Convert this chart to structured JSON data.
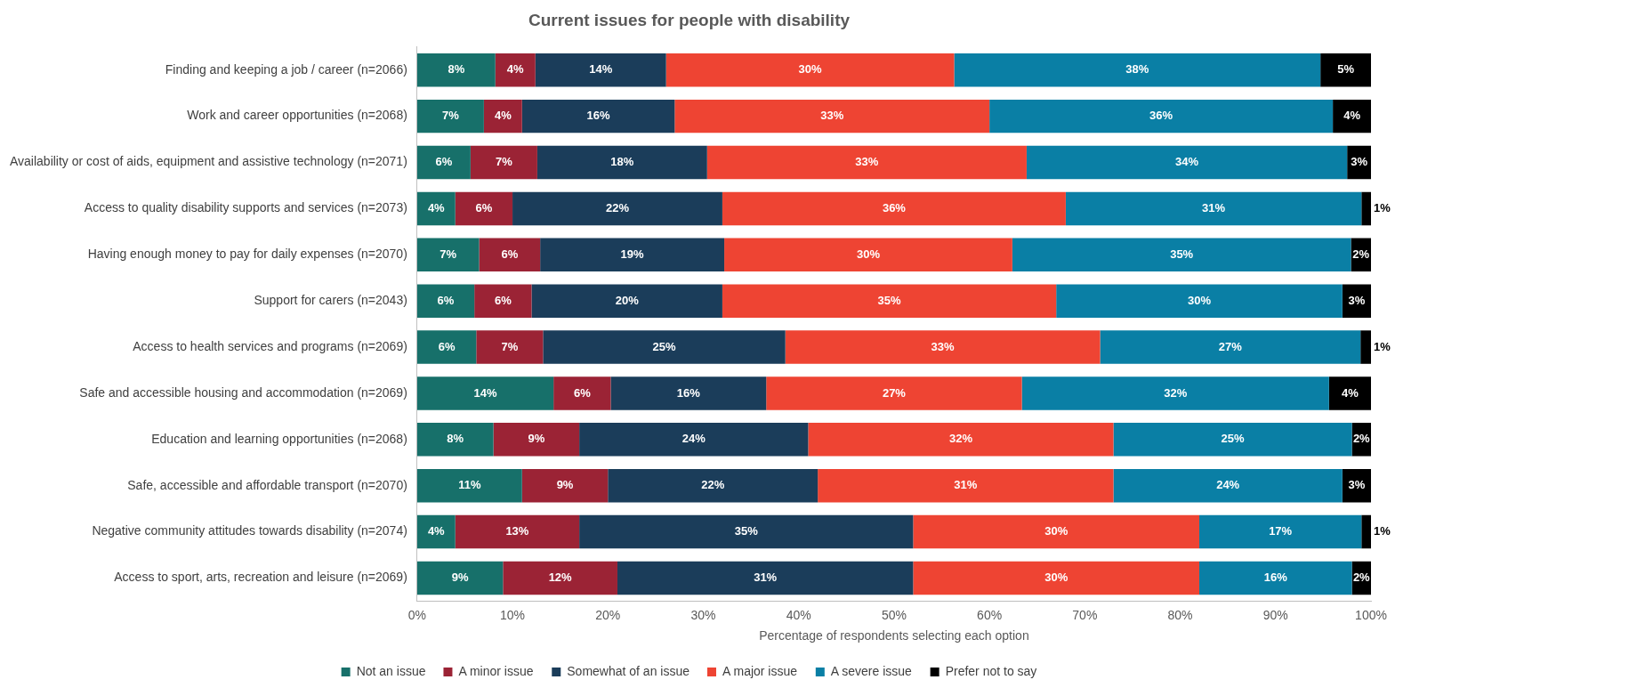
{
  "chart_data": {
    "type": "bar",
    "orientation": "horizontal",
    "stacked": true,
    "title": "Current issues for people with disability",
    "xlabel": "Percentage of respondents selecting each option",
    "categories": [
      "Finding and keeping a job / career (n=2066)",
      "Work and career opportunities (n=2068)",
      "Availability or cost of aids, equipment and assistive technology (n=2071)",
      "Access to quality disability supports and services (n=2073)",
      "Having enough money to pay for daily expenses (n=2070)",
      "Support for carers (n=2043)",
      "Access to health services and programs (n=2069)",
      "Safe and accessible housing and accommodation (n=2069)",
      "Education and learning opportunities (n=2068)",
      "Safe, accessible and affordable transport (n=2070)",
      "Negative community attitudes towards disability (n=2074)",
      "Access to sport, arts, recreation and leisure (n=2069)"
    ],
    "series": [
      {
        "name": "Not an issue",
        "color": "#17706a",
        "values": [
          8.2,
          7,
          5.6,
          4,
          6.5,
          6,
          6.2,
          14.3,
          8,
          11,
          4,
          9
        ],
        "value_labels": [
          "8%",
          "7%",
          "6%",
          "4%",
          "7%",
          "6%",
          "6%",
          "14%",
          "8%",
          "11%",
          "4%",
          "9%"
        ]
      },
      {
        "name": "A minor issue",
        "color": "#9b2335",
        "values": [
          4.2,
          4,
          7,
          6,
          6.4,
          6,
          7,
          6,
          9,
          9,
          13,
          12
        ],
        "value_labels": [
          "4%",
          "4%",
          "7%",
          "6%",
          "6%",
          "6%",
          "7%",
          "6%",
          "9%",
          "9%",
          "13%",
          "12%"
        ]
      },
      {
        "name": "Somewhat of an issue",
        "color": "#1b3d5a",
        "values": [
          13.7,
          16,
          17.8,
          22,
          19.3,
          20,
          25.4,
          16.3,
          24,
          22,
          35,
          31
        ],
        "value_labels": [
          "14%",
          "16%",
          "18%",
          "22%",
          "19%",
          "20%",
          "25%",
          "16%",
          "24%",
          "22%",
          "35%",
          "31%"
        ]
      },
      {
        "name": "A major issue",
        "color": "#ee4433",
        "values": [
          30.2,
          33,
          33.5,
          36,
          30.2,
          35,
          33,
          26.8,
          32,
          31,
          30,
          30
        ],
        "value_labels": [
          "30%",
          "33%",
          "33%",
          "36%",
          "30%",
          "35%",
          "33%",
          "27%",
          "32%",
          "31%",
          "30%",
          "30%"
        ]
      },
      {
        "name": "A severe issue",
        "color": "#0a7fa5",
        "values": [
          38.4,
          36,
          33.6,
          31,
          35.5,
          30,
          27.3,
          32.2,
          25,
          24,
          17,
          16
        ],
        "value_labels": [
          "38%",
          "36%",
          "34%",
          "31%",
          "35%",
          "30%",
          "27%",
          "32%",
          "25%",
          "24%",
          "17%",
          "16%"
        ]
      },
      {
        "name": "Prefer not to say",
        "color": "#000000",
        "values": [
          5.3,
          4,
          2.5,
          1,
          2.1,
          3,
          1.1,
          4.4,
          2,
          3,
          1,
          2
        ],
        "value_labels": [
          "5%",
          "4%",
          "3%",
          "1%",
          "2%",
          "3%",
          "1%",
          "4%",
          "2%",
          "3%",
          "1%",
          "2%"
        ]
      }
    ],
    "xlim": [
      0,
      100
    ],
    "xticks": [
      {
        "value": 0,
        "label": "0%"
      },
      {
        "value": 10,
        "label": "10%"
      },
      {
        "value": 20,
        "label": "20%"
      },
      {
        "value": 30,
        "label": "30%"
      },
      {
        "value": 40,
        "label": "40%"
      },
      {
        "value": 50,
        "label": "50%"
      },
      {
        "value": 60,
        "label": "60%"
      },
      {
        "value": 70,
        "label": "70%"
      },
      {
        "value": 80,
        "label": "80%"
      },
      {
        "value": 90,
        "label": "90%"
      },
      {
        "value": 100,
        "label": "100%"
      }
    ],
    "grid": false,
    "legend": "bottom"
  }
}
